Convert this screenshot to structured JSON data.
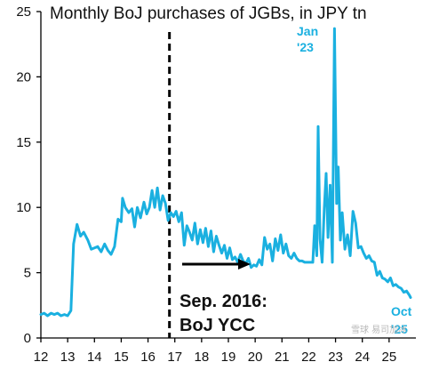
{
  "chart_data": {
    "type": "line",
    "title": "Monthly BoJ purchases of JGBs, in JPY tn",
    "xlabel": "",
    "ylabel": "",
    "xlim": [
      2012.0,
      2026.0
    ],
    "ylim": [
      0,
      25
    ],
    "y_ticks": [
      0,
      5,
      10,
      15,
      20,
      25
    ],
    "x_ticks": [
      12,
      13,
      14,
      15,
      16,
      17,
      18,
      19,
      20,
      21,
      22,
      23,
      24,
      25
    ],
    "grid": false,
    "legend": "none",
    "line_color": "#1ab0e0",
    "series": [
      {
        "values": [
          [
            2012.0,
            1.8
          ],
          [
            2012.12,
            1.9
          ],
          [
            2012.25,
            1.7
          ],
          [
            2012.38,
            1.9
          ],
          [
            2012.5,
            1.8
          ],
          [
            2012.62,
            1.9
          ],
          [
            2012.75,
            1.7
          ],
          [
            2012.88,
            1.8
          ],
          [
            2013.0,
            1.7
          ],
          [
            2013.12,
            2.1
          ],
          [
            2013.22,
            7.2
          ],
          [
            2013.35,
            8.7
          ],
          [
            2013.48,
            7.8
          ],
          [
            2013.6,
            8.1
          ],
          [
            2013.75,
            7.5
          ],
          [
            2013.88,
            6.8
          ],
          [
            2014.0,
            6.9
          ],
          [
            2014.12,
            7.0
          ],
          [
            2014.25,
            6.6
          ],
          [
            2014.38,
            7.2
          ],
          [
            2014.5,
            6.7
          ],
          [
            2014.62,
            6.4
          ],
          [
            2014.75,
            7.0
          ],
          [
            2014.88,
            9.1
          ],
          [
            2015.0,
            8.9
          ],
          [
            2015.05,
            10.7
          ],
          [
            2015.15,
            10.0
          ],
          [
            2015.28,
            9.6
          ],
          [
            2015.4,
            9.9
          ],
          [
            2015.5,
            8.5
          ],
          [
            2015.6,
            10.0
          ],
          [
            2015.72,
            9.2
          ],
          [
            2015.85,
            10.4
          ],
          [
            2015.95,
            9.5
          ],
          [
            2016.05,
            10.0
          ],
          [
            2016.15,
            11.3
          ],
          [
            2016.25,
            10.0
          ],
          [
            2016.35,
            11.5
          ],
          [
            2016.45,
            9.8
          ],
          [
            2016.55,
            10.9
          ],
          [
            2016.65,
            10.3
          ],
          [
            2016.75,
            9.0
          ],
          [
            2016.85,
            9.6
          ],
          [
            2016.95,
            9.3
          ],
          [
            2017.05,
            9.7
          ],
          [
            2017.15,
            8.9
          ],
          [
            2017.25,
            9.6
          ],
          [
            2017.35,
            7.1
          ],
          [
            2017.45,
            8.6
          ],
          [
            2017.55,
            8.1
          ],
          [
            2017.65,
            7.5
          ],
          [
            2017.75,
            8.8
          ],
          [
            2017.85,
            7.2
          ],
          [
            2017.95,
            8.3
          ],
          [
            2018.05,
            7.3
          ],
          [
            2018.15,
            8.4
          ],
          [
            2018.25,
            7.0
          ],
          [
            2018.35,
            8.2
          ],
          [
            2018.45,
            6.6
          ],
          [
            2018.55,
            7.8
          ],
          [
            2018.65,
            7.1
          ],
          [
            2018.75,
            6.5
          ],
          [
            2018.85,
            7.1
          ],
          [
            2018.95,
            6.1
          ],
          [
            2019.05,
            6.9
          ],
          [
            2019.15,
            6.0
          ],
          [
            2019.25,
            6.2
          ],
          [
            2019.35,
            5.8
          ],
          [
            2019.45,
            6.4
          ],
          [
            2019.55,
            5.9
          ],
          [
            2019.65,
            5.7
          ],
          [
            2019.75,
            6.1
          ],
          [
            2019.85,
            5.4
          ],
          [
            2019.95,
            5.6
          ],
          [
            2020.05,
            5.5
          ],
          [
            2020.15,
            6.0
          ],
          [
            2020.25,
            5.6
          ],
          [
            2020.35,
            7.7
          ],
          [
            2020.45,
            6.8
          ],
          [
            2020.55,
            7.2
          ],
          [
            2020.65,
            5.9
          ],
          [
            2020.75,
            7.6
          ],
          [
            2020.85,
            6.7
          ],
          [
            2020.95,
            7.9
          ],
          [
            2021.05,
            6.5
          ],
          [
            2021.15,
            7.2
          ],
          [
            2021.25,
            6.3
          ],
          [
            2021.35,
            6.1
          ],
          [
            2021.45,
            6.5
          ],
          [
            2021.55,
            6.1
          ],
          [
            2021.65,
            5.9
          ],
          [
            2021.75,
            5.9
          ],
          [
            2021.85,
            5.8
          ],
          [
            2021.95,
            5.8
          ],
          [
            2022.05,
            5.8
          ],
          [
            2022.15,
            5.8
          ],
          [
            2022.22,
            8.6
          ],
          [
            2022.3,
            6.3
          ],
          [
            2022.35,
            16.2
          ],
          [
            2022.42,
            7.6
          ],
          [
            2022.5,
            5.8
          ],
          [
            2022.58,
            9.9
          ],
          [
            2022.65,
            12.6
          ],
          [
            2022.72,
            7.7
          ],
          [
            2022.8,
            11.7
          ],
          [
            2022.88,
            5.8
          ],
          [
            2022.96,
            23.7
          ],
          [
            2023.04,
            10.3
          ],
          [
            2023.1,
            13.1
          ],
          [
            2023.18,
            7.5
          ],
          [
            2023.25,
            9.6
          ],
          [
            2023.35,
            6.8
          ],
          [
            2023.45,
            7.9
          ],
          [
            2023.55,
            6.3
          ],
          [
            2023.65,
            9.7
          ],
          [
            2023.75,
            8.8
          ],
          [
            2023.85,
            6.9
          ],
          [
            2023.95,
            7.0
          ],
          [
            2024.05,
            6.5
          ],
          [
            2024.15,
            6.1
          ],
          [
            2024.25,
            6.3
          ],
          [
            2024.35,
            5.9
          ],
          [
            2024.45,
            5.8
          ],
          [
            2024.55,
            4.8
          ],
          [
            2024.65,
            5.1
          ],
          [
            2024.75,
            4.6
          ],
          [
            2024.85,
            4.5
          ],
          [
            2024.95,
            4.3
          ],
          [
            2025.05,
            4.6
          ],
          [
            2025.15,
            4.0
          ],
          [
            2025.25,
            4.1
          ],
          [
            2025.35,
            3.9
          ],
          [
            2025.45,
            3.8
          ],
          [
            2025.55,
            3.5
          ],
          [
            2025.65,
            3.6
          ],
          [
            2025.75,
            3.3
          ],
          [
            2025.8,
            3.1
          ]
        ]
      }
    ],
    "vline": {
      "x": 2016.8,
      "style": "dashed"
    },
    "annotations": {
      "ycc_line1": "Sep. 2016:",
      "ycc_line2": "BoJ YCC",
      "peak_line1": "Jan",
      "peak_line2": "'23",
      "end_line1": "Oct",
      "end_line2": "'25"
    }
  },
  "watermark": "雪球 易司加冰"
}
